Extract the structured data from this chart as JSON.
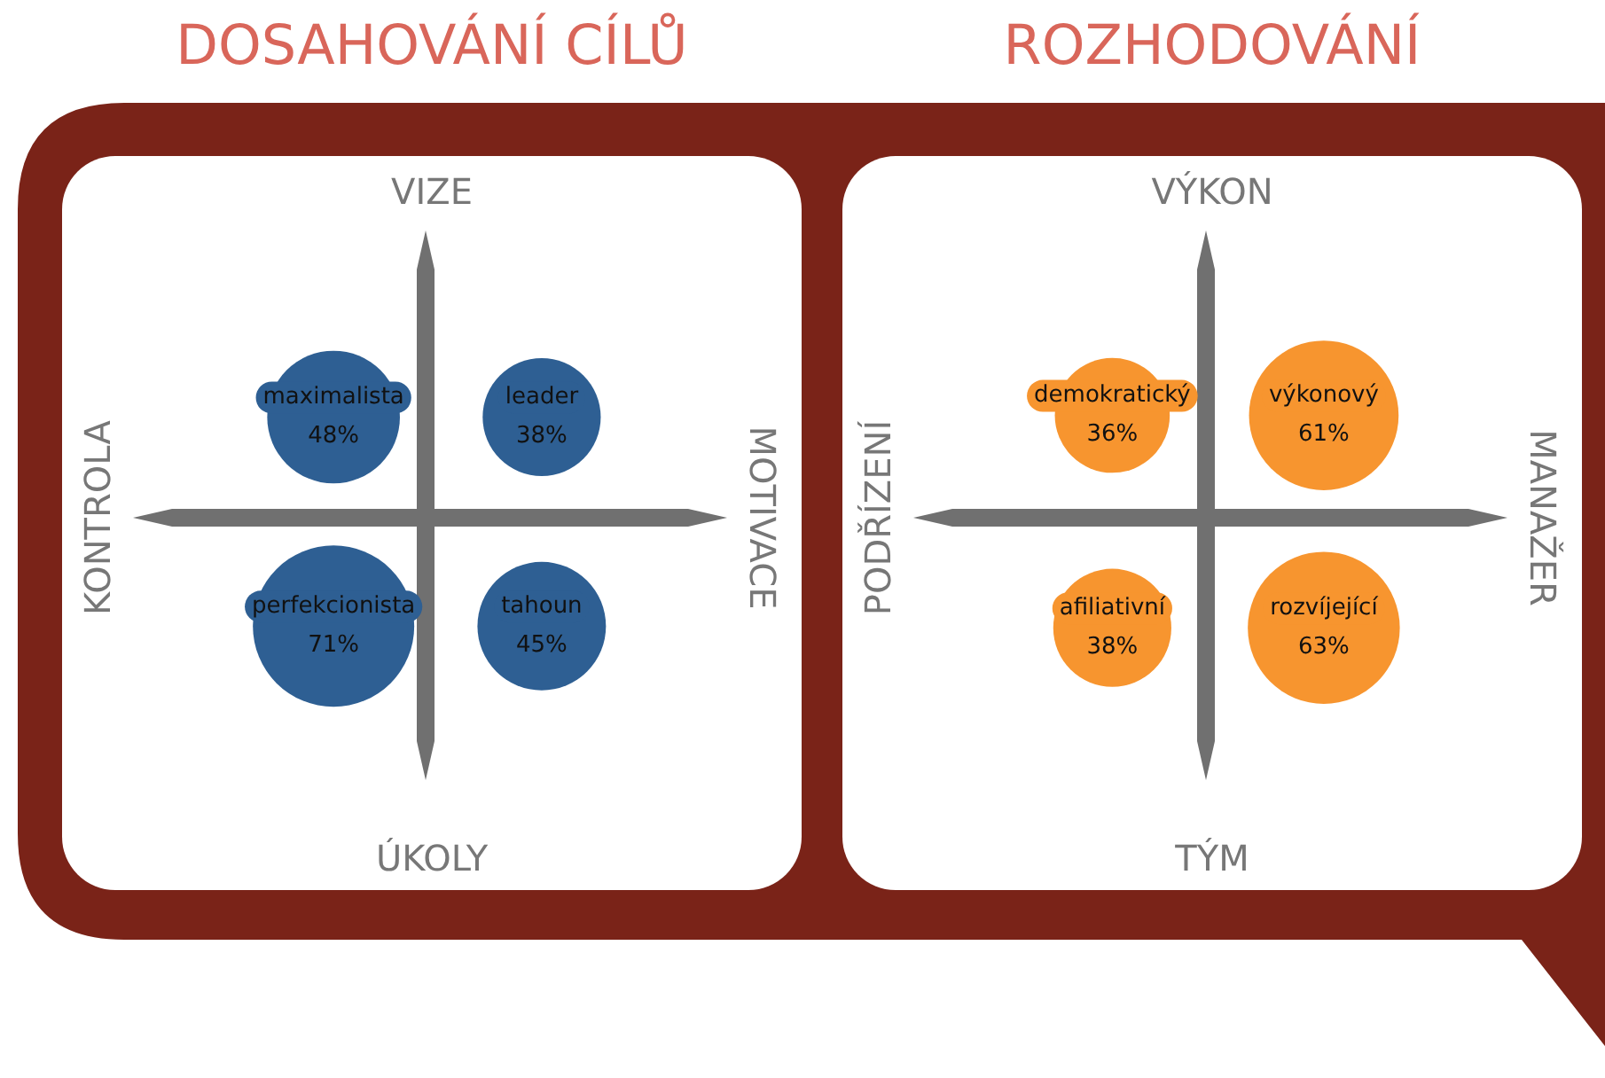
{
  "chart_data": [
    {
      "type": "other",
      "title": "DOSAHOVÁNÍ CÍLŮ",
      "categories": [
        "maximalista",
        "leader",
        "perfekcionista",
        "tahoun"
      ],
      "values": [
        48,
        38,
        71,
        45
      ],
      "value_labels": [
        "48%",
        "38%",
        "71%",
        "45%"
      ],
      "color": "#2e5f93",
      "annotations": [
        "VIZE",
        "ÚKOLY",
        "KONTROLA",
        "MOTIVACE"
      ]
    },
    {
      "type": "other",
      "title": "ROZHODOVÁNÍ",
      "categories": [
        "demokratický",
        "výkonový",
        "afiliativní",
        "rozvíjející"
      ],
      "values": [
        36,
        61,
        38,
        63
      ],
      "value_labels": [
        "36%",
        "61%",
        "38%",
        "63%"
      ],
      "color": "#f7952f",
      "annotations": [
        "VÝKON",
        "TÝM",
        "PODŘÍZENÍ",
        "MANAŽER"
      ]
    }
  ]
}
